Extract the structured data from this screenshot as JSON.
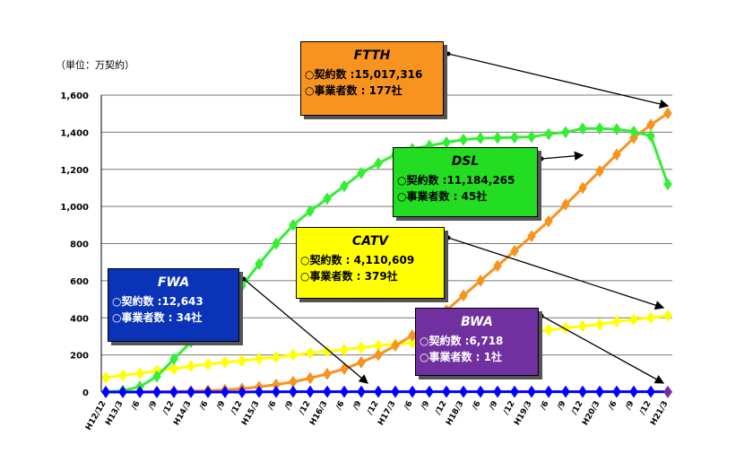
{
  "unit_label": "（単位：万契約）",
  "chart_data": {
    "type": "line",
    "x": [
      "H12/12",
      "H13/3",
      "/6",
      "/9",
      "/12",
      "H14/3",
      "/6",
      "/9",
      "/12",
      "H15/3",
      "/6",
      "/9",
      "/12",
      "H16/3",
      "/6",
      "/9",
      "/12",
      "H17/3",
      "/6",
      "/9",
      "/12",
      "H18/3",
      "/6",
      "/9",
      "/12",
      "H19/3",
      "/6",
      "/9",
      "/12",
      "H20/3",
      "/6",
      "/9",
      "/12",
      "H21/3"
    ],
    "y_ticks": [
      "0",
      "200",
      "400",
      "600",
      "800",
      "1,000",
      "1,200",
      "1,400",
      "1,600"
    ],
    "ylim": [
      0,
      1600
    ],
    "grid": true,
    "series": [
      {
        "name": "DSL",
        "color": "#33ee33",
        "values": [
          1,
          7,
          29,
          84,
          178,
          270,
          359,
          440,
          573,
          690,
          800,
          900,
          975,
          1042,
          1110,
          1180,
          1232,
          1280,
          1310,
          1327,
          1345,
          1360,
          1368,
          1370,
          1372,
          1375,
          1390,
          1400,
          1420,
          1420,
          1416,
          1403,
          1380,
          1120
        ]
      },
      {
        "name": "FTTH",
        "color": "#f7931e",
        "values": [
          1,
          1,
          2,
          2,
          3,
          5,
          8,
          12,
          18,
          28,
          40,
          55,
          75,
          98,
          125,
          160,
          200,
          250,
          305,
          370,
          440,
          520,
          600,
          680,
          760,
          840,
          920,
          1010,
          1100,
          1190,
          1280,
          1370,
          1440,
          1502
        ]
      },
      {
        "name": "CATV",
        "color": "#ffff00",
        "values": [
          78,
          90,
          100,
          115,
          125,
          140,
          150,
          160,
          168,
          180,
          188,
          200,
          210,
          220,
          228,
          240,
          250,
          258,
          266,
          275,
          282,
          290,
          300,
          308,
          318,
          325,
          335,
          345,
          355,
          365,
          380,
          390,
          400,
          411
        ]
      },
      {
        "name": "FWA",
        "color": "#0000ff",
        "values": [
          0,
          0,
          0,
          0,
          0,
          0,
          0,
          0,
          0,
          1,
          1,
          2,
          2,
          2,
          2,
          2,
          2,
          2,
          2,
          2,
          2,
          2,
          2,
          2,
          2,
          2,
          2,
          2,
          2,
          2,
          2,
          2,
          2,
          1.3
        ]
      },
      {
        "name": "BWA",
        "color": "#7030a0",
        "values": [
          null,
          null,
          null,
          null,
          null,
          null,
          null,
          null,
          null,
          null,
          null,
          null,
          null,
          null,
          null,
          null,
          null,
          null,
          null,
          null,
          null,
          null,
          null,
          null,
          null,
          null,
          null,
          null,
          null,
          null,
          null,
          null,
          null,
          0.7
        ]
      }
    ]
  },
  "boxes": {
    "ftth": {
      "name": "FTTH",
      "line1": "○契約数 :15,017,316",
      "line2": "○事業者数 : 177社"
    },
    "dsl": {
      "name": "DSL",
      "line1": "○契約数 :11,184,265",
      "line2": "○事業者数 : 45社"
    },
    "catv": {
      "name": "CATV",
      "line1": "○契約数 : 4,110,609",
      "line2": "○事業者数 : 379社"
    },
    "fwa": {
      "name": "FWA",
      "line1": "○契約数 :12,643",
      "line2": "○事業者数 : 34社"
    },
    "bwa": {
      "name": "BWA",
      "line1": "○契約数 :6,718",
      "line2": "○事業者数 : 1社"
    }
  }
}
